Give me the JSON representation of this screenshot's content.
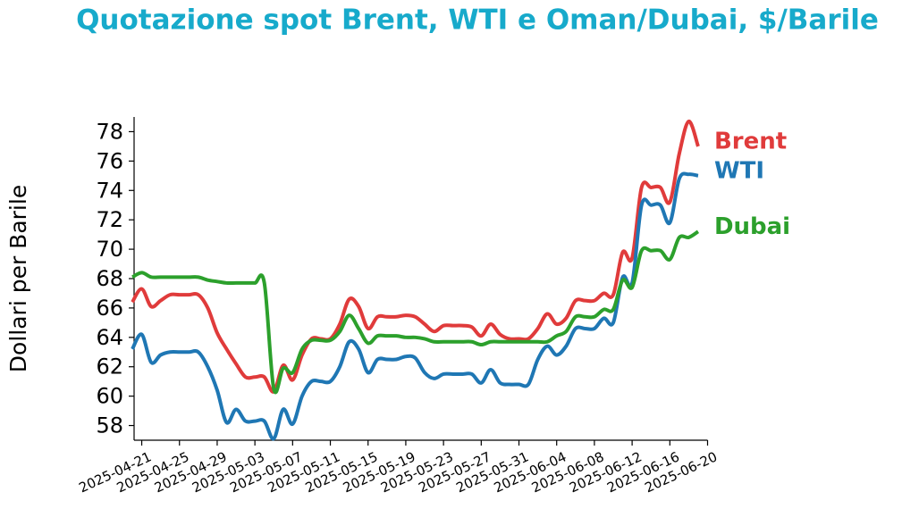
{
  "chart_data": {
    "type": "line",
    "title": "Quotazione spot Brent, WTI e Oman/Dubai, $/Barile",
    "y_label": "Dollari per Barile",
    "x": [
      "2025-04-20",
      "2025-04-21",
      "2025-04-22",
      "2025-04-23",
      "2025-04-24",
      "2025-04-25",
      "2025-04-26",
      "2025-04-27",
      "2025-04-28",
      "2025-04-29",
      "2025-04-30",
      "2025-05-01",
      "2025-05-02",
      "2025-05-03",
      "2025-05-04",
      "2025-05-05",
      "2025-05-06",
      "2025-05-07",
      "2025-05-08",
      "2025-05-09",
      "2025-05-10",
      "2025-05-11",
      "2025-05-12",
      "2025-05-13",
      "2025-05-14",
      "2025-05-15",
      "2025-05-16",
      "2025-05-17",
      "2025-05-18",
      "2025-05-19",
      "2025-05-20",
      "2025-05-21",
      "2025-05-22",
      "2025-05-23",
      "2025-05-24",
      "2025-05-25",
      "2025-05-26",
      "2025-05-27",
      "2025-05-28",
      "2025-05-29",
      "2025-05-30",
      "2025-05-31",
      "2025-06-01",
      "2025-06-02",
      "2025-06-03",
      "2025-06-04",
      "2025-06-05",
      "2025-06-06",
      "2025-06-07",
      "2025-06-08",
      "2025-06-09",
      "2025-06-10",
      "2025-06-11",
      "2025-06-12",
      "2025-06-13",
      "2025-06-14",
      "2025-06-15",
      "2025-06-16",
      "2025-06-17",
      "2025-06-18",
      "2025-06-19"
    ],
    "series": [
      {
        "name": "Brent",
        "color": "#e03b3b",
        "values": [
          66.4,
          67.3,
          66.1,
          66.5,
          66.9,
          66.9,
          66.9,
          66.9,
          66.0,
          64.3,
          63.2,
          62.2,
          61.3,
          61.3,
          61.3,
          60.3,
          62.1,
          61.1,
          62.8,
          63.9,
          63.9,
          63.9,
          64.9,
          66.6,
          66.1,
          64.6,
          65.4,
          65.4,
          65.4,
          65.5,
          65.4,
          64.9,
          64.4,
          64.8,
          64.8,
          64.8,
          64.7,
          64.1,
          64.9,
          64.2,
          63.9,
          63.9,
          63.9,
          64.6,
          65.6,
          64.9,
          65.3,
          66.5,
          66.5,
          66.5,
          67.0,
          66.9,
          69.8,
          69.4,
          74.2,
          74.2,
          74.2,
          73.2,
          76.5,
          78.7,
          77.0
        ]
      },
      {
        "name": "WTI",
        "color": "#1f77b4",
        "values": [
          63.2,
          64.2,
          62.3,
          62.8,
          63.0,
          63.0,
          63.0,
          63.0,
          62.0,
          60.4,
          58.2,
          59.1,
          58.3,
          58.3,
          58.3,
          57.1,
          59.1,
          58.1,
          60.0,
          61.0,
          61.0,
          61.0,
          62.0,
          63.7,
          63.2,
          61.6,
          62.5,
          62.5,
          62.5,
          62.7,
          62.6,
          61.6,
          61.2,
          61.5,
          61.5,
          61.5,
          61.5,
          60.9,
          61.8,
          60.9,
          60.8,
          60.8,
          60.8,
          62.5,
          63.4,
          62.8,
          63.4,
          64.6,
          64.6,
          64.6,
          65.3,
          65.0,
          68.1,
          67.7,
          73.0,
          73.0,
          73.0,
          71.8,
          74.8,
          75.1,
          75.0
        ]
      },
      {
        "name": "Dubai",
        "color": "#2ca02c",
        "values": [
          68.1,
          68.4,
          68.1,
          68.1,
          68.1,
          68.1,
          68.1,
          68.1,
          67.9,
          67.8,
          67.7,
          67.7,
          67.7,
          67.7,
          67.7,
          60.5,
          61.9,
          61.6,
          63.2,
          63.8,
          63.8,
          63.8,
          64.4,
          65.5,
          64.6,
          63.6,
          64.1,
          64.1,
          64.1,
          64.0,
          64.0,
          63.9,
          63.7,
          63.7,
          63.7,
          63.7,
          63.7,
          63.5,
          63.7,
          63.7,
          63.7,
          63.7,
          63.7,
          63.7,
          63.7,
          64.1,
          64.4,
          65.4,
          65.4,
          65.4,
          65.9,
          65.9,
          67.9,
          67.4,
          69.9,
          69.9,
          69.9,
          69.3,
          70.8,
          70.8,
          71.2
        ]
      }
    ],
    "xlim": [
      "2025-04-20",
      "2025-06-20"
    ],
    "xticks": [
      "2025-04-21",
      "2025-04-25",
      "2025-04-29",
      "2025-05-03",
      "2025-05-07",
      "2025-05-11",
      "2025-05-15",
      "2025-05-19",
      "2025-05-23",
      "2025-05-27",
      "2025-05-31",
      "2025-06-04",
      "2025-06-08",
      "2025-06-12",
      "2025-06-16",
      "2025-06-20"
    ],
    "ylim": [
      57,
      79
    ],
    "yticks": [
      58,
      60,
      62,
      64,
      66,
      68,
      70,
      72,
      74,
      76,
      78
    ]
  }
}
